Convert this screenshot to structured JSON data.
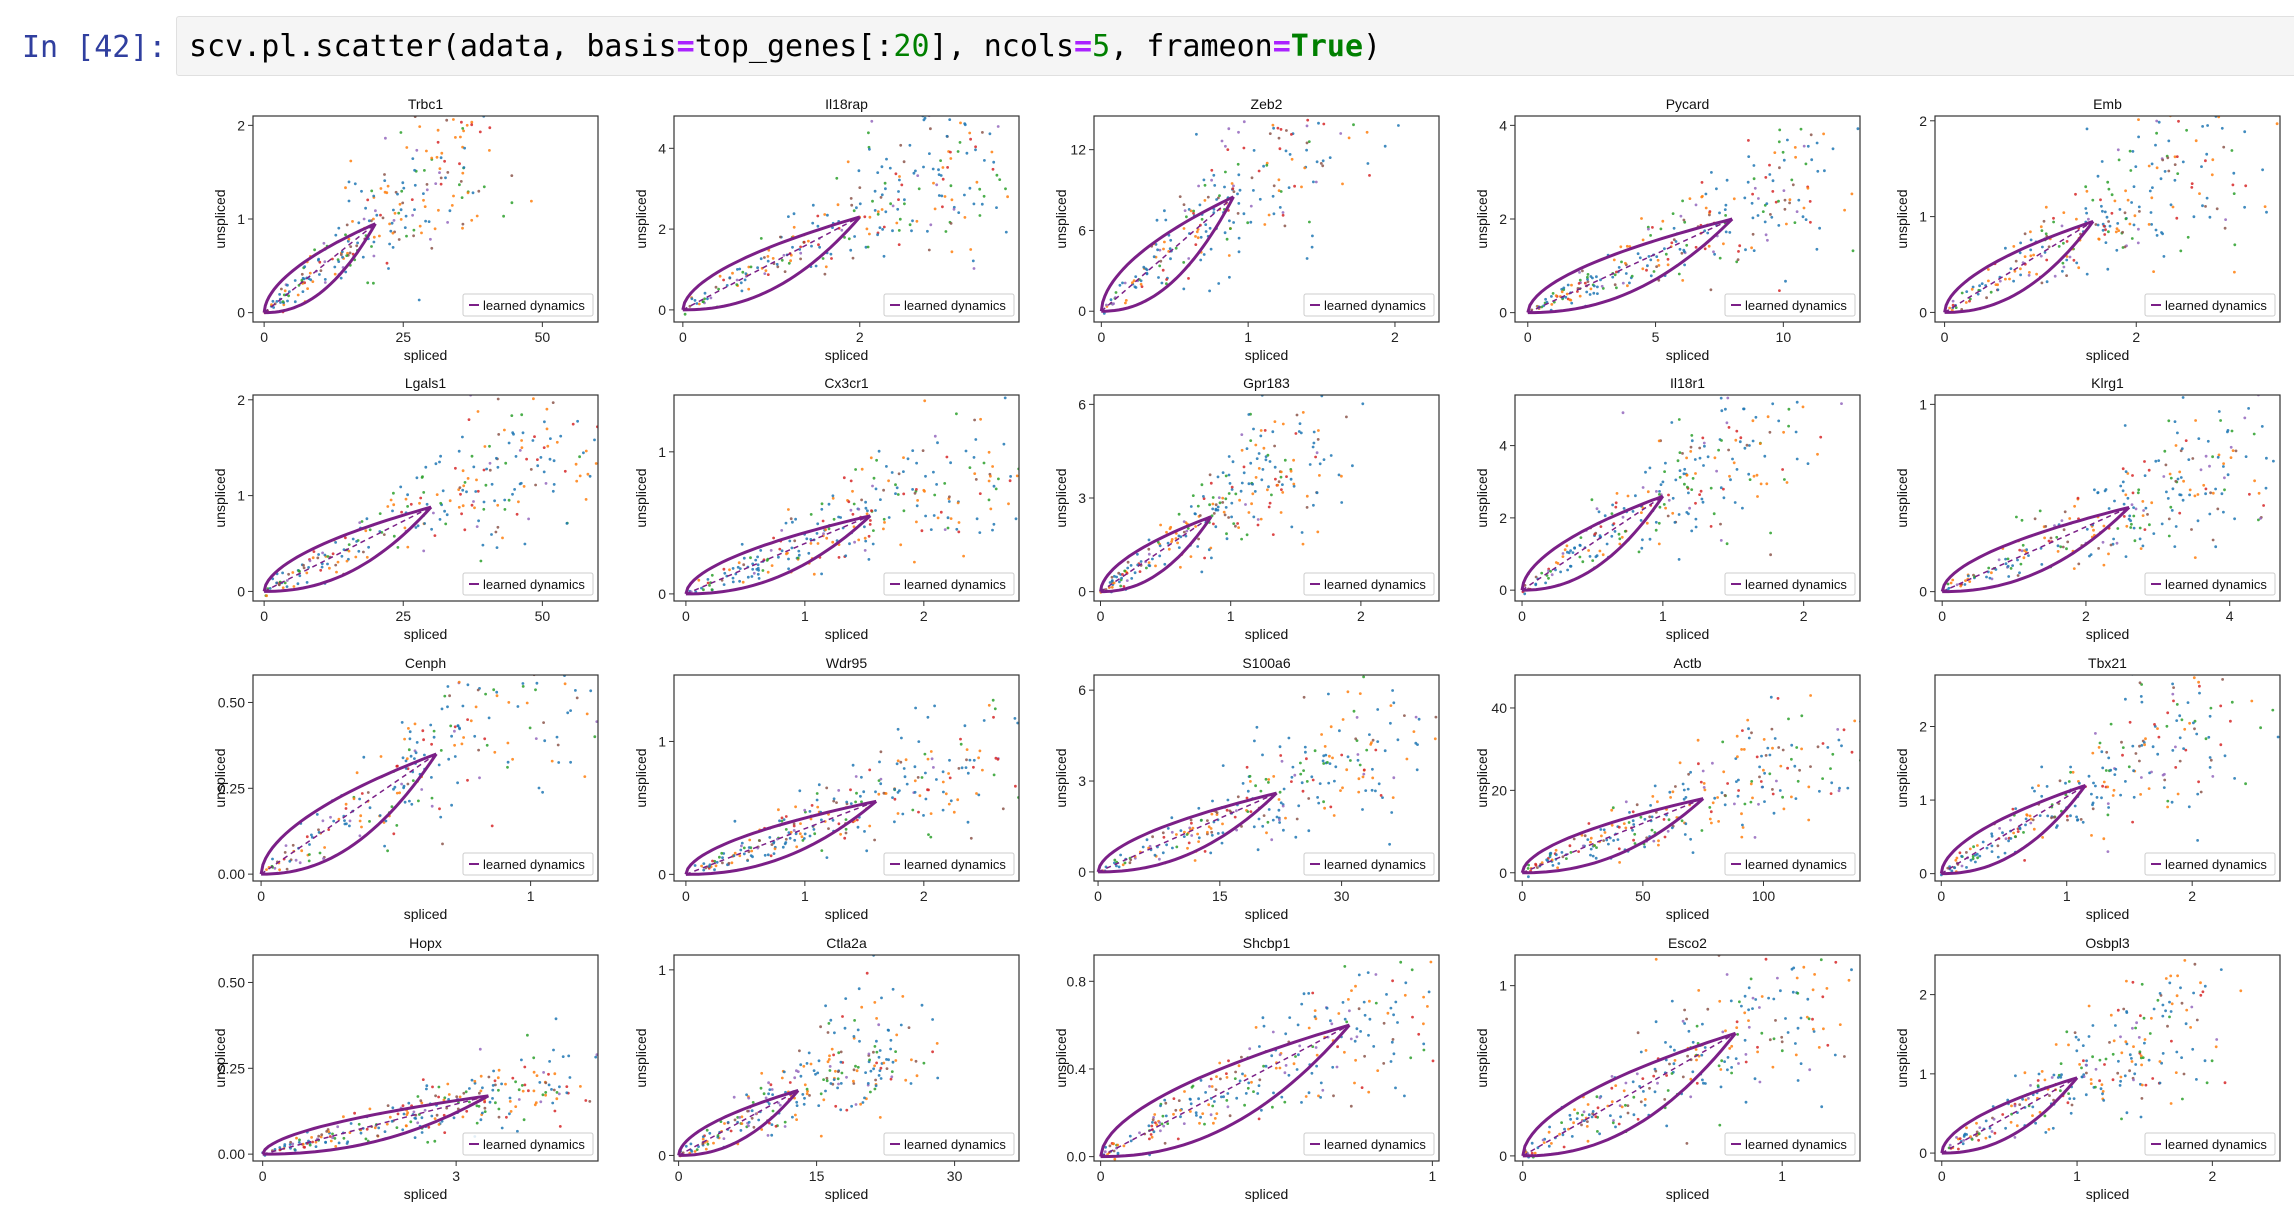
{
  "cell": {
    "prompt": "In [42]:",
    "code": {
      "part1": "scv.pl.scatter(adata, basis",
      "eq1": "=",
      "part2": "top_genes[:",
      "num1": "20",
      "part3": "], ncols",
      "eq2": "=",
      "num2": "5",
      "part4": ", frameon",
      "eq3": "=",
      "kw1": "True",
      "part5": ")"
    }
  },
  "colors": {
    "dynamics": "#7b1f87",
    "clusters": [
      "#1f77b4",
      "#ff7f0e",
      "#2ca02c",
      "#d62728",
      "#9467bd",
      "#8c564b"
    ]
  },
  "legend_label": "learned dynamics",
  "chart_data": [
    {
      "type": "scatter",
      "title": "Trbc1",
      "xlabel": "spliced",
      "ylabel": "unspliced",
      "xlim": [
        -2,
        60
      ],
      "ylim": [
        -0.1,
        2.1
      ],
      "xticks": [
        {
          "v": 0,
          "l": "0"
        },
        {
          "v": 25,
          "l": "25"
        },
        {
          "v": 50,
          "l": "50"
        }
      ],
      "yticks": [
        {
          "v": 0,
          "l": "0"
        },
        {
          "v": 1,
          "l": "1"
        },
        {
          "v": 2,
          "l": "2"
        }
      ],
      "curve": {
        "x_max": 20,
        "y_max": 0.95
      },
      "legend": "learned dynamics"
    },
    {
      "type": "scatter",
      "title": "Il18rap",
      "xlabel": "spliced",
      "ylabel": "unspliced",
      "xlim": [
        -0.1,
        3.8
      ],
      "ylim": [
        -0.3,
        4.8
      ],
      "xticks": [
        {
          "v": 0,
          "l": "0"
        },
        {
          "v": 2,
          "l": "2"
        }
      ],
      "yticks": [
        {
          "v": 0,
          "l": "0"
        },
        {
          "v": 2,
          "l": "2"
        },
        {
          "v": 4,
          "l": "4"
        }
      ],
      "curve": {
        "x_max": 2.0,
        "y_max": 2.3
      },
      "legend": "learned dynamics"
    },
    {
      "type": "scatter",
      "title": "Zeb2",
      "xlabel": "spliced",
      "ylabel": "unspliced",
      "xlim": [
        -0.05,
        2.3
      ],
      "ylim": [
        -0.8,
        14.5
      ],
      "xticks": [
        {
          "v": 0,
          "l": "0"
        },
        {
          "v": 1,
          "l": "1"
        },
        {
          "v": 2,
          "l": "2"
        }
      ],
      "yticks": [
        {
          "v": 0,
          "l": "0"
        },
        {
          "v": 6,
          "l": "6"
        },
        {
          "v": 12,
          "l": "12"
        }
      ],
      "curve": {
        "x_max": 0.9,
        "y_max": 8.5
      },
      "legend": "learned dynamics"
    },
    {
      "type": "scatter",
      "title": "Pycard",
      "xlabel": "spliced",
      "ylabel": "unspliced",
      "xlim": [
        -0.5,
        13
      ],
      "ylim": [
        -0.2,
        4.2
      ],
      "xticks": [
        {
          "v": 0,
          "l": "0"
        },
        {
          "v": 5,
          "l": "5"
        },
        {
          "v": 10,
          "l": "10"
        }
      ],
      "yticks": [
        {
          "v": 0,
          "l": "0"
        },
        {
          "v": 2,
          "l": "2"
        },
        {
          "v": 4,
          "l": "4"
        }
      ],
      "curve": {
        "x_max": 8,
        "y_max": 2.0
      },
      "legend": "learned dynamics"
    },
    {
      "type": "scatter",
      "title": "Emb",
      "xlabel": "spliced",
      "ylabel": "unspliced",
      "xlim": [
        -0.1,
        3.5
      ],
      "ylim": [
        -0.1,
        2.05
      ],
      "xticks": [
        {
          "v": 0,
          "l": "0"
        },
        {
          "v": 2,
          "l": "2"
        }
      ],
      "yticks": [
        {
          "v": 0,
          "l": "0"
        },
        {
          "v": 1,
          "l": "1"
        },
        {
          "v": 2,
          "l": "2"
        }
      ],
      "curve": {
        "x_max": 1.55,
        "y_max": 0.95
      },
      "legend": "learned dynamics"
    },
    {
      "type": "scatter",
      "title": "Lgals1",
      "xlabel": "spliced",
      "ylabel": "unspliced",
      "xlim": [
        -2,
        60
      ],
      "ylim": [
        -0.1,
        2.05
      ],
      "xticks": [
        {
          "v": 0,
          "l": "0"
        },
        {
          "v": 25,
          "l": "25"
        },
        {
          "v": 50,
          "l": "50"
        }
      ],
      "yticks": [
        {
          "v": 0,
          "l": "0"
        },
        {
          "v": 1,
          "l": "1"
        },
        {
          "v": 2,
          "l": "2"
        }
      ],
      "curve": {
        "x_max": 30,
        "y_max": 0.88
      },
      "legend": "learned dynamics"
    },
    {
      "type": "scatter",
      "title": "Cx3cr1",
      "xlabel": "spliced",
      "ylabel": "unspliced",
      "xlim": [
        -0.1,
        2.8
      ],
      "ylim": [
        -0.05,
        1.4
      ],
      "xticks": [
        {
          "v": 0,
          "l": "0"
        },
        {
          "v": 1,
          "l": "1"
        },
        {
          "v": 2,
          "l": "2"
        }
      ],
      "yticks": [
        {
          "v": 0,
          "l": "0"
        },
        {
          "v": 1,
          "l": "1"
        }
      ],
      "curve": {
        "x_max": 1.55,
        "y_max": 0.55
      },
      "legend": "learned dynamics"
    },
    {
      "type": "scatter",
      "title": "Gpr183",
      "xlabel": "spliced",
      "ylabel": "unspliced",
      "xlim": [
        -0.05,
        2.6
      ],
      "ylim": [
        -0.3,
        6.3
      ],
      "xticks": [
        {
          "v": 0,
          "l": "0"
        },
        {
          "v": 1,
          "l": "1"
        },
        {
          "v": 2,
          "l": "2"
        }
      ],
      "yticks": [
        {
          "v": 0,
          "l": "0"
        },
        {
          "v": 3,
          "l": "3"
        },
        {
          "v": 6,
          "l": "6"
        }
      ],
      "curve": {
        "x_max": 0.85,
        "y_max": 2.4
      },
      "legend": "learned dynamics"
    },
    {
      "type": "scatter",
      "title": "Il18r1",
      "xlabel": "spliced",
      "ylabel": "unspliced",
      "xlim": [
        -0.05,
        2.4
      ],
      "ylim": [
        -0.3,
        5.4
      ],
      "xticks": [
        {
          "v": 0,
          "l": "0"
        },
        {
          "v": 1,
          "l": "1"
        },
        {
          "v": 2,
          "l": "2"
        }
      ],
      "yticks": [
        {
          "v": 0,
          "l": "0"
        },
        {
          "v": 2,
          "l": "2"
        },
        {
          "v": 4,
          "l": "4"
        }
      ],
      "curve": {
        "x_max": 1.0,
        "y_max": 2.6
      },
      "legend": "learned dynamics"
    },
    {
      "type": "scatter",
      "title": "Klrg1",
      "xlabel": "spliced",
      "ylabel": "unspliced",
      "xlim": [
        -0.1,
        4.7
      ],
      "ylim": [
        -0.05,
        1.05
      ],
      "xticks": [
        {
          "v": 0,
          "l": "0"
        },
        {
          "v": 2,
          "l": "2"
        },
        {
          "v": 4,
          "l": "4"
        }
      ],
      "yticks": [
        {
          "v": 0,
          "l": "0"
        },
        {
          "v": 1,
          "l": "1"
        }
      ],
      "curve": {
        "x_max": 2.6,
        "y_max": 0.45
      },
      "legend": "learned dynamics"
    },
    {
      "type": "scatter",
      "title": "Cenph",
      "xlabel": "spliced",
      "ylabel": "unspliced",
      "xlim": [
        -0.03,
        1.25
      ],
      "ylim": [
        -0.02,
        0.58
      ],
      "xticks": [
        {
          "v": 0,
          "l": "0"
        },
        {
          "v": 1,
          "l": "1"
        }
      ],
      "yticks": [
        {
          "v": 0,
          "l": "0.00"
        },
        {
          "v": 0.25,
          "l": "0.25"
        },
        {
          "v": 0.5,
          "l": "0.50"
        }
      ],
      "curve": {
        "x_max": 0.65,
        "y_max": 0.35
      },
      "legend": "learned dynamics"
    },
    {
      "type": "scatter",
      "title": "Wdr95",
      "xlabel": "spliced",
      "ylabel": "unspliced",
      "xlim": [
        -0.1,
        2.8
      ],
      "ylim": [
        -0.05,
        1.5
      ],
      "xticks": [
        {
          "v": 0,
          "l": "0"
        },
        {
          "v": 1,
          "l": "1"
        },
        {
          "v": 2,
          "l": "2"
        }
      ],
      "yticks": [
        {
          "v": 0,
          "l": "0"
        },
        {
          "v": 1,
          "l": "1"
        }
      ],
      "curve": {
        "x_max": 1.6,
        "y_max": 0.55
      },
      "legend": "learned dynamics"
    },
    {
      "type": "scatter",
      "title": "S100a6",
      "xlabel": "spliced",
      "ylabel": "unspliced",
      "xlim": [
        -0.5,
        42
      ],
      "ylim": [
        -0.3,
        6.5
      ],
      "xticks": [
        {
          "v": 0,
          "l": "0"
        },
        {
          "v": 15,
          "l": "15"
        },
        {
          "v": 30,
          "l": "30"
        }
      ],
      "yticks": [
        {
          "v": 0,
          "l": "0"
        },
        {
          "v": 3,
          "l": "3"
        },
        {
          "v": 6,
          "l": "6"
        }
      ],
      "curve": {
        "x_max": 22,
        "y_max": 2.6
      },
      "legend": "learned dynamics"
    },
    {
      "type": "scatter",
      "title": "Actb",
      "xlabel": "spliced",
      "ylabel": "unspliced",
      "xlim": [
        -3,
        140
      ],
      "ylim": [
        -2,
        48
      ],
      "xticks": [
        {
          "v": 0,
          "l": "0"
        },
        {
          "v": 50,
          "l": "50"
        },
        {
          "v": 100,
          "l": "100"
        }
      ],
      "yticks": [
        {
          "v": 0,
          "l": "0"
        },
        {
          "v": 20,
          "l": "20"
        },
        {
          "v": 40,
          "l": "40"
        }
      ],
      "curve": {
        "x_max": 75,
        "y_max": 18
      },
      "legend": "learned dynamics"
    },
    {
      "type": "scatter",
      "title": "Tbx21",
      "xlabel": "spliced",
      "ylabel": "unspliced",
      "xlim": [
        -0.05,
        2.7
      ],
      "ylim": [
        -0.1,
        2.7
      ],
      "xticks": [
        {
          "v": 0,
          "l": "0"
        },
        {
          "v": 1,
          "l": "1"
        },
        {
          "v": 2,
          "l": "2"
        }
      ],
      "yticks": [
        {
          "v": 0,
          "l": "0"
        },
        {
          "v": 1,
          "l": "1"
        },
        {
          "v": 2,
          "l": "2"
        }
      ],
      "curve": {
        "x_max": 1.15,
        "y_max": 1.2
      },
      "legend": "learned dynamics"
    },
    {
      "type": "scatter",
      "title": "Hopx",
      "xlabel": "spliced",
      "ylabel": "unspliced",
      "xlim": [
        -0.15,
        5.2
      ],
      "ylim": [
        -0.02,
        0.58
      ],
      "xticks": [
        {
          "v": 0,
          "l": "0"
        },
        {
          "v": 3,
          "l": "3"
        }
      ],
      "yticks": [
        {
          "v": 0,
          "l": "0.00"
        },
        {
          "v": 0.25,
          "l": "0.25"
        },
        {
          "v": 0.5,
          "l": "0.50"
        }
      ],
      "curve": {
        "x_max": 3.5,
        "y_max": 0.17
      },
      "legend": "learned dynamics"
    },
    {
      "type": "scatter",
      "title": "Ctla2a",
      "xlabel": "spliced",
      "ylabel": "unspliced",
      "xlim": [
        -0.5,
        37
      ],
      "ylim": [
        -0.03,
        1.08
      ],
      "xticks": [
        {
          "v": 0,
          "l": "0"
        },
        {
          "v": 15,
          "l": "15"
        },
        {
          "v": 30,
          "l": "30"
        }
      ],
      "yticks": [
        {
          "v": 0,
          "l": "0"
        },
        {
          "v": 1,
          "l": "1"
        }
      ],
      "curve": {
        "x_max": 13,
        "y_max": 0.35
      },
      "legend": "learned dynamics"
    },
    {
      "type": "scatter",
      "title": "Shcbp1",
      "xlabel": "spliced",
      "ylabel": "unspliced",
      "xlim": [
        -0.02,
        1.02
      ],
      "ylim": [
        -0.02,
        0.92
      ],
      "xticks": [
        {
          "v": 0,
          "l": "0"
        },
        {
          "v": 1,
          "l": "1"
        }
      ],
      "yticks": [
        {
          "v": 0,
          "l": "0.0"
        },
        {
          "v": 0.4,
          "l": "0.4"
        },
        {
          "v": 0.8,
          "l": "0.8"
        }
      ],
      "curve": {
        "x_max": 0.75,
        "y_max": 0.6
      },
      "legend": "learned dynamics"
    },
    {
      "type": "scatter",
      "title": "Esco2",
      "xlabel": "spliced",
      "ylabel": "unspliced",
      "xlim": [
        -0.03,
        1.3
      ],
      "ylim": [
        -0.03,
        1.18
      ],
      "xticks": [
        {
          "v": 0,
          "l": "0"
        },
        {
          "v": 1,
          "l": "1"
        }
      ],
      "yticks": [
        {
          "v": 0,
          "l": "0"
        },
        {
          "v": 1,
          "l": "1"
        }
      ],
      "curve": {
        "x_max": 0.82,
        "y_max": 0.72
      },
      "legend": "learned dynamics"
    },
    {
      "type": "scatter",
      "title": "Osbpl3",
      "xlabel": "spliced",
      "ylabel": "unspliced",
      "xlim": [
        -0.05,
        2.5
      ],
      "ylim": [
        -0.1,
        2.5
      ],
      "xticks": [
        {
          "v": 0,
          "l": "0"
        },
        {
          "v": 1,
          "l": "1"
        },
        {
          "v": 2,
          "l": "2"
        }
      ],
      "yticks": [
        {
          "v": 0,
          "l": "0"
        },
        {
          "v": 1,
          "l": "1"
        },
        {
          "v": 2,
          "l": "2"
        }
      ],
      "curve": {
        "x_max": 1.0,
        "y_max": 0.95
      },
      "legend": "learned dynamics"
    }
  ]
}
